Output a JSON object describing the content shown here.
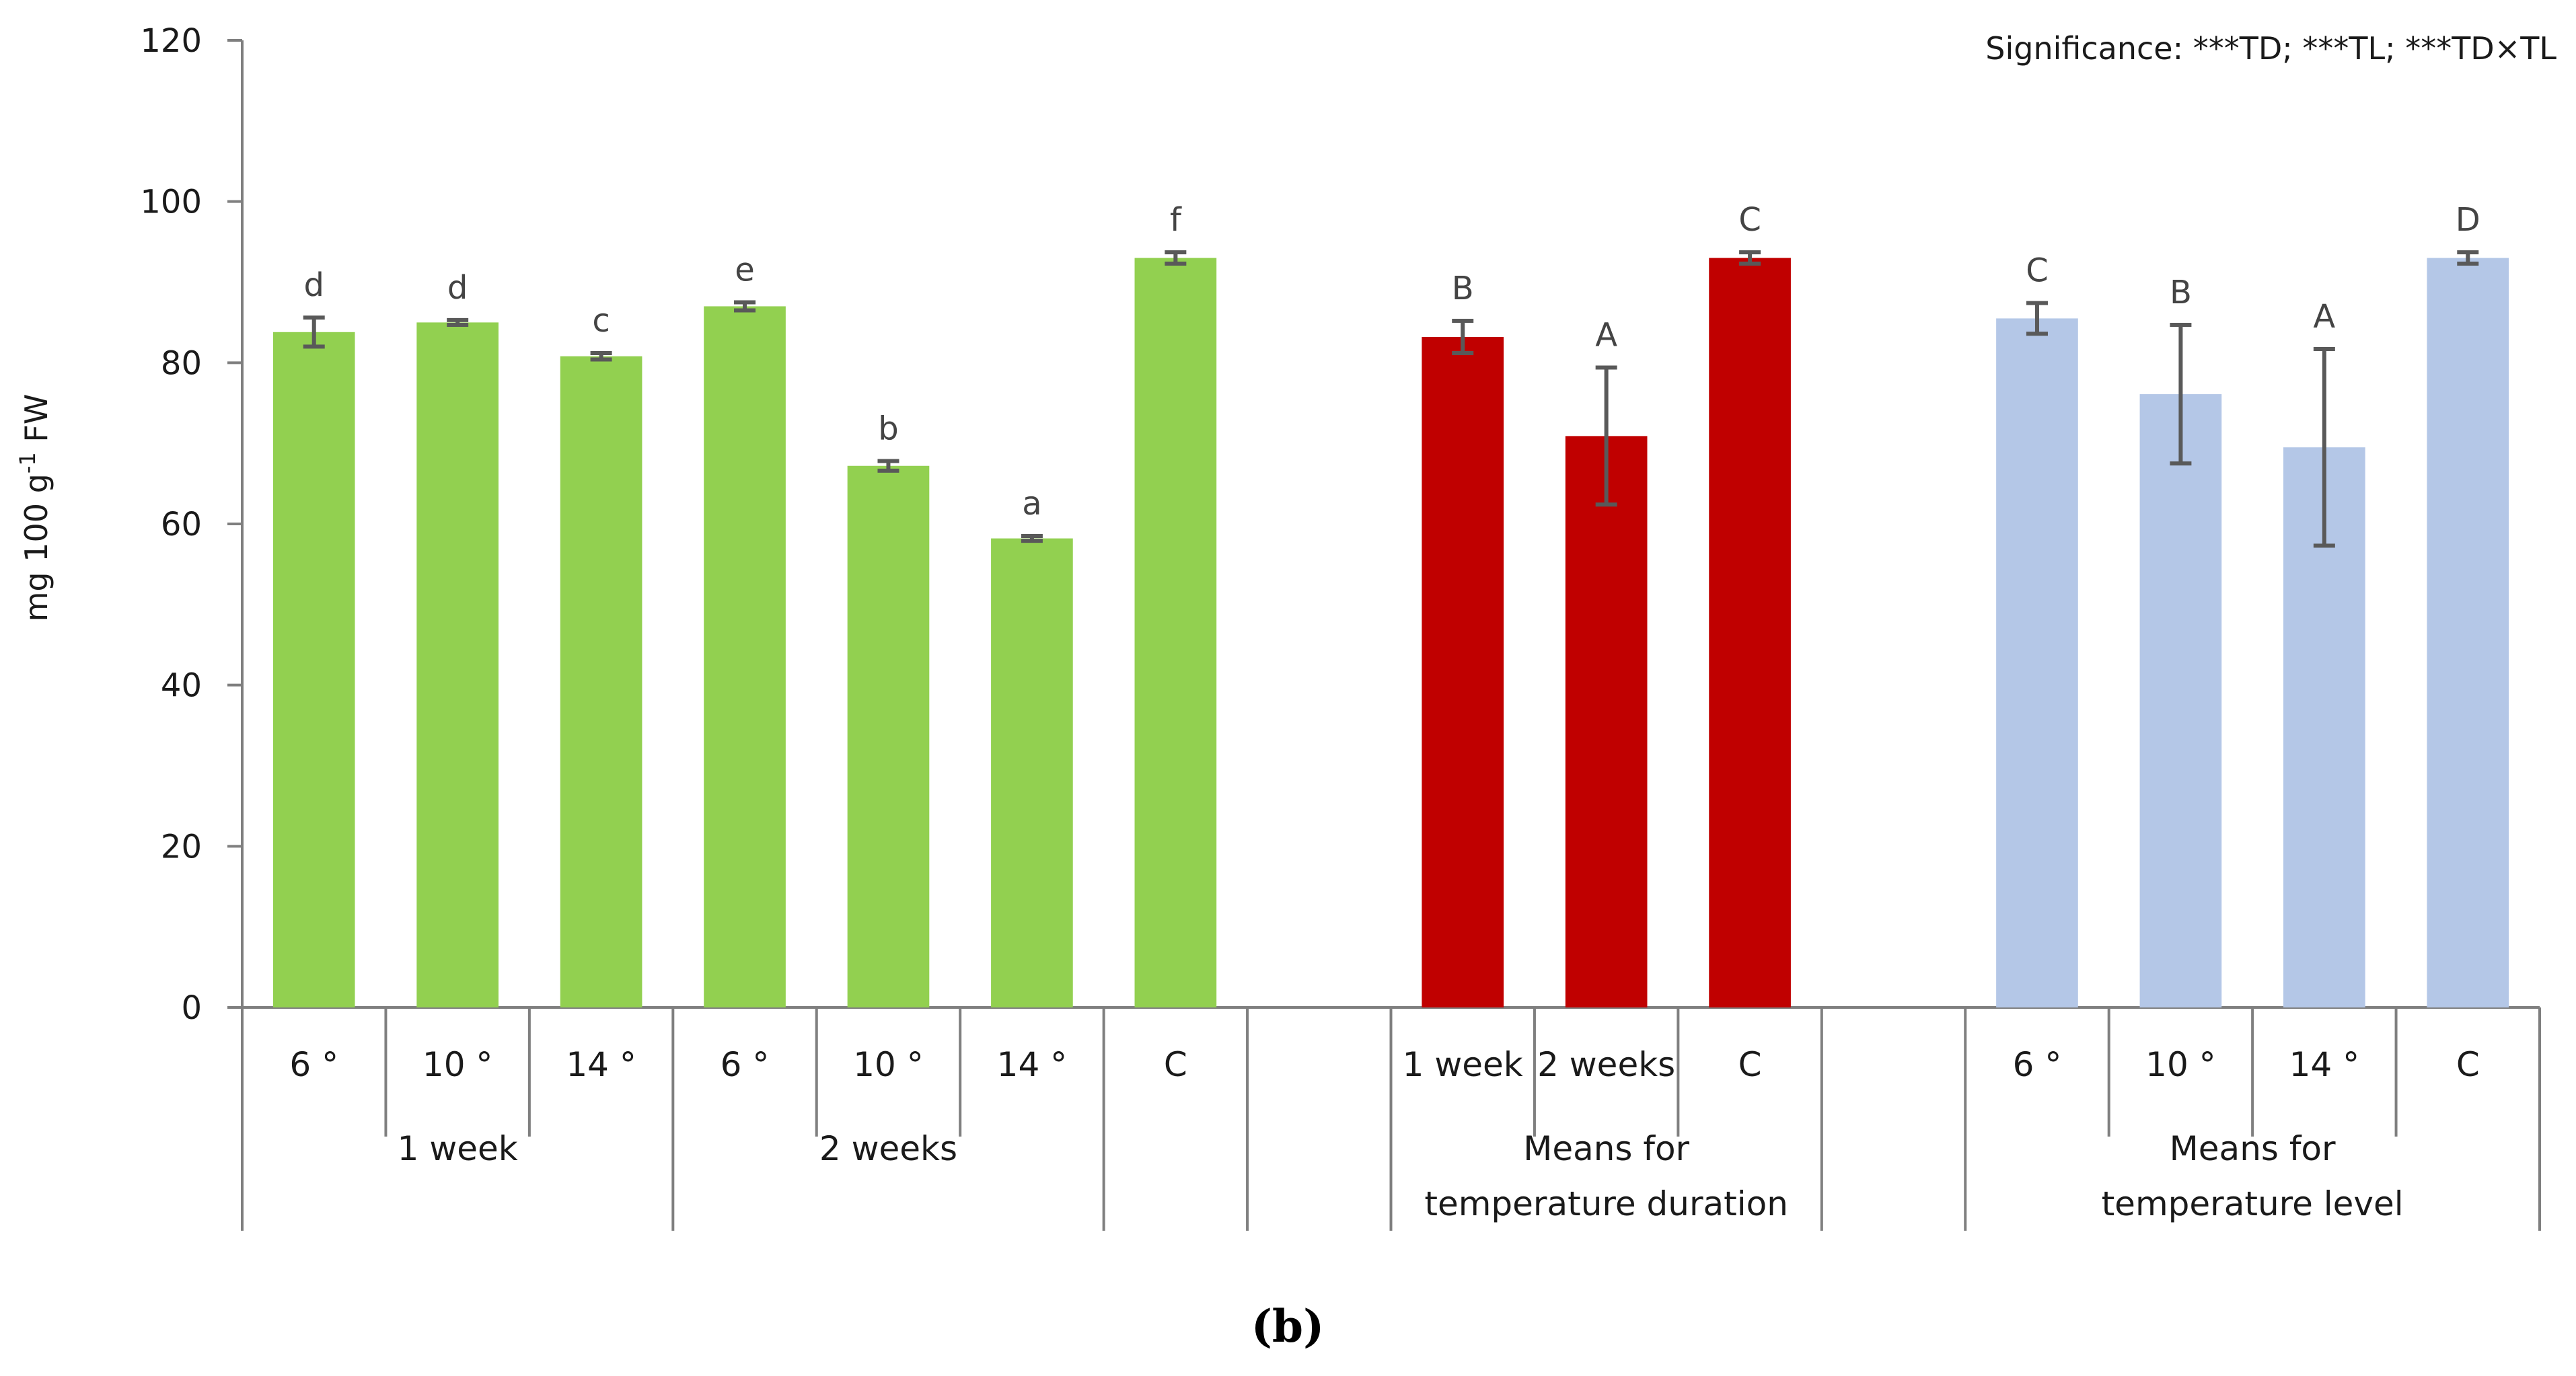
{
  "chart_data": {
    "type": "bar",
    "significance": "Significance: ***TD; ***TL; ***TD×TL",
    "panel_label": "(b)",
    "ylabel_main": "mg 100 g",
    "ylabel_sup": "-1",
    "ylabel_end": " FW",
    "ylim": [
      0,
      120
    ],
    "yticks": [
      "0",
      "20",
      "40",
      "60",
      "80",
      "100",
      "120"
    ],
    "ytick_values": [
      0,
      20,
      40,
      60,
      80,
      100,
      120
    ],
    "colors": {
      "green": "#92d050",
      "red": "#c00000",
      "blue": "#b4c7e7",
      "error": "#595959"
    },
    "bars": [
      {
        "category": "6 °",
        "value": 83.8,
        "err": 1.8,
        "letter": "d",
        "color": "green",
        "slot": 0
      },
      {
        "category": "10 °",
        "value": 85.0,
        "err": 0.3,
        "letter": "d",
        "color": "green",
        "slot": 1
      },
      {
        "category": "14 °",
        "value": 80.8,
        "err": 0.4,
        "letter": "c",
        "color": "green",
        "slot": 2
      },
      {
        "category": "6 °",
        "value": 87.0,
        "err": 0.5,
        "letter": "e",
        "color": "green",
        "slot": 3
      },
      {
        "category": "10 °",
        "value": 67.2,
        "err": 0.6,
        "letter": "b",
        "color": "green",
        "slot": 4
      },
      {
        "category": "14 °",
        "value": 58.2,
        "err": 0.3,
        "letter": "a",
        "color": "green",
        "slot": 5
      },
      {
        "category": "C",
        "value": 93.0,
        "err": 0.7,
        "letter": "f",
        "color": "green",
        "slot": 6
      },
      {
        "category": "1 week",
        "value": 83.2,
        "err": 2.0,
        "letter": "B",
        "color": "red",
        "slot": 8
      },
      {
        "category": "2 weeks",
        "value": 70.9,
        "err": 8.5,
        "letter": "A",
        "color": "red",
        "slot": 9
      },
      {
        "category": "C",
        "value": 93.0,
        "err": 0.7,
        "letter": "C",
        "color": "red",
        "slot": 10
      },
      {
        "category": "6 °",
        "value": 85.5,
        "err": 1.9,
        "letter": "C",
        "color": "blue",
        "slot": 12
      },
      {
        "category": "10 °",
        "value": 76.1,
        "err": 8.6,
        "letter": "B",
        "color": "blue",
        "slot": 13
      },
      {
        "category": "14 °",
        "value": 69.5,
        "err": 12.2,
        "letter": "A",
        "color": "blue",
        "slot": 14
      },
      {
        "category": "C",
        "value": 93.0,
        "err": 0.7,
        "letter": "D",
        "color": "blue",
        "slot": 15
      }
    ],
    "groups": [
      {
        "lines": [
          "1 week"
        ],
        "start": 0,
        "end": 3
      },
      {
        "lines": [
          "2 weeks"
        ],
        "start": 3,
        "end": 6
      },
      {
        "lines": [
          ""
        ],
        "start": 6,
        "end": 7
      },
      {
        "lines": [
          ""
        ],
        "start": 7,
        "end": 8
      },
      {
        "lines": [
          "Means for",
          "temperature duration"
        ],
        "start": 8,
        "end": 11
      },
      {
        "lines": [
          ""
        ],
        "start": 11,
        "end": 12
      },
      {
        "lines": [
          "Means for",
          "temperature level"
        ],
        "start": 12,
        "end": 16
      }
    ]
  }
}
